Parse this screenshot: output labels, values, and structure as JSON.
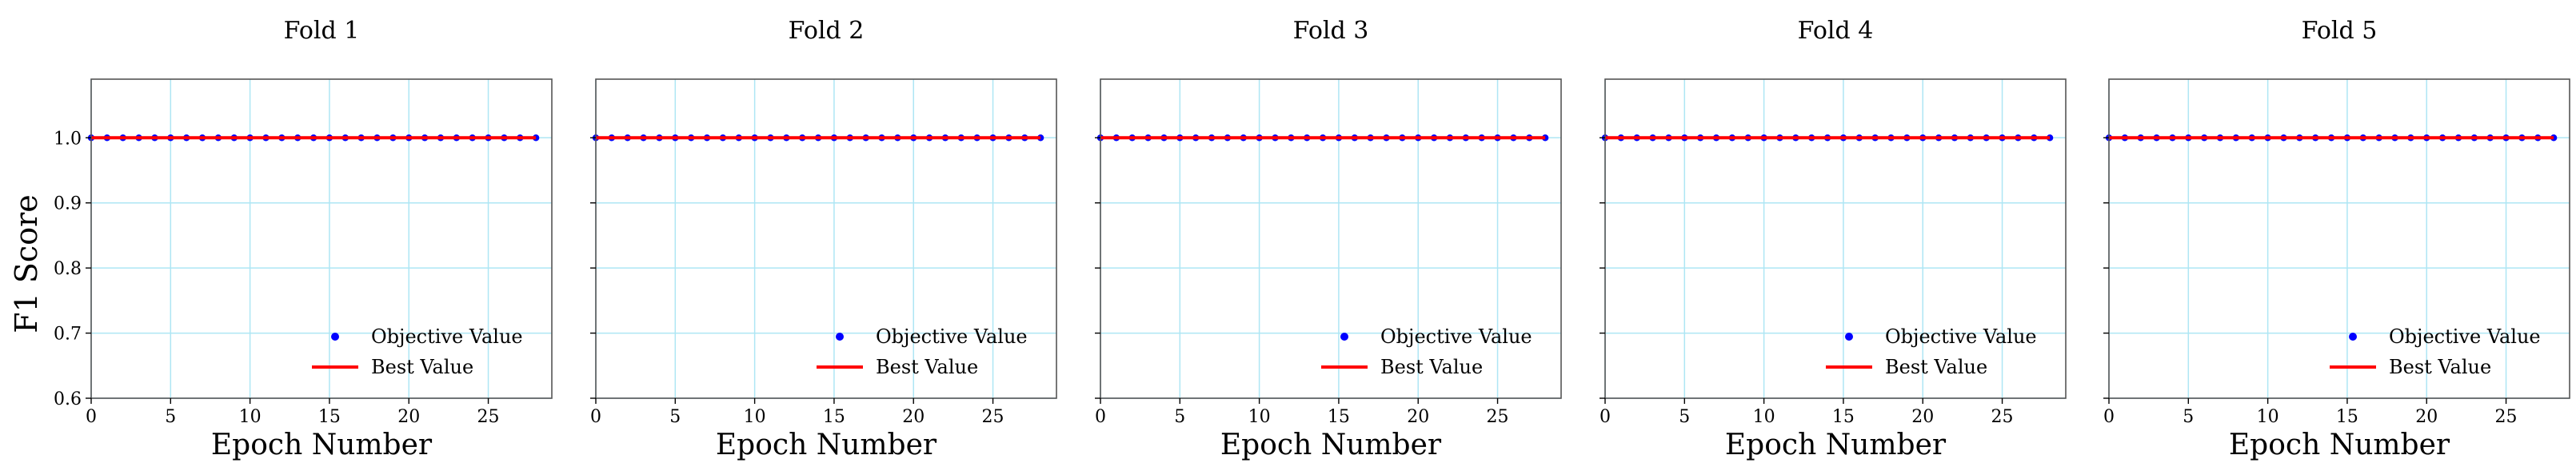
{
  "figure": {
    "ylabel": "F1 Score"
  },
  "chart_data": [
    {
      "type": "scatter",
      "title": "Fold 1",
      "xlabel": "Epoch Number",
      "ylabel": "F1 Score",
      "xlim": [
        0,
        29
      ],
      "ylim": [
        0.6,
        1.09
      ],
      "xticks": [
        0,
        5,
        10,
        15,
        20,
        25
      ],
      "yticks": [
        0.6,
        0.7,
        0.8,
        0.9,
        1.0
      ],
      "ytick_labels": [
        "0.6",
        "0.7",
        "0.8",
        "0.9",
        "1.0"
      ],
      "grid": true,
      "legend_position": "lower right",
      "series": [
        {
          "name": "Objective Value",
          "kind": "points",
          "color": "#0000ff",
          "x": [
            0,
            1,
            2,
            3,
            4,
            5,
            6,
            7,
            8,
            9,
            10,
            11,
            12,
            13,
            14,
            15,
            16,
            17,
            18,
            19,
            20,
            21,
            22,
            23,
            24,
            25,
            26,
            27,
            28
          ],
          "y": [
            1.0,
            1.0,
            1.0,
            1.0,
            1.0,
            1.0,
            1.0,
            1.0,
            1.0,
            1.0,
            1.0,
            1.0,
            1.0,
            1.0,
            1.0,
            1.0,
            1.0,
            1.0,
            1.0,
            1.0,
            1.0,
            1.0,
            1.0,
            1.0,
            1.0,
            1.0,
            1.0,
            1.0,
            1.0
          ]
        },
        {
          "name": "Best Value",
          "kind": "line",
          "color": "#ff0000",
          "x": [
            0,
            28
          ],
          "y": [
            1.0,
            1.0
          ]
        }
      ]
    },
    {
      "type": "scatter",
      "title": "Fold 2",
      "xlabel": "Epoch Number",
      "xlim": [
        0,
        29
      ],
      "ylim": [
        0.6,
        1.09
      ],
      "xticks": [
        0,
        5,
        10,
        15,
        20,
        25
      ],
      "yticks": [
        0.6,
        0.7,
        0.8,
        0.9,
        1.0
      ],
      "grid": true,
      "legend_position": "lower right",
      "series": [
        {
          "name": "Objective Value",
          "kind": "points",
          "color": "#0000ff",
          "x": [
            0,
            1,
            2,
            3,
            4,
            5,
            6,
            7,
            8,
            9,
            10,
            11,
            12,
            13,
            14,
            15,
            16,
            17,
            18,
            19,
            20,
            21,
            22,
            23,
            24,
            25,
            26,
            27,
            28
          ],
          "y": [
            1.0,
            1.0,
            1.0,
            1.0,
            1.0,
            1.0,
            1.0,
            1.0,
            1.0,
            1.0,
            1.0,
            1.0,
            1.0,
            1.0,
            1.0,
            1.0,
            1.0,
            1.0,
            1.0,
            1.0,
            1.0,
            1.0,
            1.0,
            1.0,
            1.0,
            1.0,
            1.0,
            1.0,
            1.0
          ]
        },
        {
          "name": "Best Value",
          "kind": "line",
          "color": "#ff0000",
          "x": [
            0,
            28
          ],
          "y": [
            1.0,
            1.0
          ]
        }
      ]
    },
    {
      "type": "scatter",
      "title": "Fold 3",
      "xlabel": "Epoch Number",
      "xlim": [
        0,
        29
      ],
      "ylim": [
        0.6,
        1.09
      ],
      "xticks": [
        0,
        5,
        10,
        15,
        20,
        25
      ],
      "yticks": [
        0.6,
        0.7,
        0.8,
        0.9,
        1.0
      ],
      "grid": true,
      "legend_position": "lower right",
      "series": [
        {
          "name": "Objective Value",
          "kind": "points",
          "color": "#0000ff",
          "x": [
            0,
            1,
            2,
            3,
            4,
            5,
            6,
            7,
            8,
            9,
            10,
            11,
            12,
            13,
            14,
            15,
            16,
            17,
            18,
            19,
            20,
            21,
            22,
            23,
            24,
            25,
            26,
            27,
            28
          ],
          "y": [
            1.0,
            1.0,
            1.0,
            1.0,
            1.0,
            1.0,
            1.0,
            1.0,
            1.0,
            1.0,
            1.0,
            1.0,
            1.0,
            1.0,
            1.0,
            1.0,
            1.0,
            1.0,
            1.0,
            1.0,
            1.0,
            1.0,
            1.0,
            1.0,
            1.0,
            1.0,
            1.0,
            1.0,
            1.0
          ]
        },
        {
          "name": "Best Value",
          "kind": "line",
          "color": "#ff0000",
          "x": [
            0,
            28
          ],
          "y": [
            1.0,
            1.0
          ]
        }
      ]
    },
    {
      "type": "scatter",
      "title": "Fold 4",
      "xlabel": "Epoch Number",
      "xlim": [
        0,
        29
      ],
      "ylim": [
        0.6,
        1.09
      ],
      "xticks": [
        0,
        5,
        10,
        15,
        20,
        25
      ],
      "yticks": [
        0.6,
        0.7,
        0.8,
        0.9,
        1.0
      ],
      "grid": true,
      "legend_position": "lower right",
      "series": [
        {
          "name": "Objective Value",
          "kind": "points",
          "color": "#0000ff",
          "x": [
            0,
            1,
            2,
            3,
            4,
            5,
            6,
            7,
            8,
            9,
            10,
            11,
            12,
            13,
            14,
            15,
            16,
            17,
            18,
            19,
            20,
            21,
            22,
            23,
            24,
            25,
            26,
            27,
            28
          ],
          "y": [
            1.0,
            1.0,
            1.0,
            1.0,
            1.0,
            1.0,
            1.0,
            1.0,
            1.0,
            1.0,
            1.0,
            1.0,
            1.0,
            1.0,
            1.0,
            1.0,
            1.0,
            1.0,
            1.0,
            1.0,
            1.0,
            1.0,
            1.0,
            1.0,
            1.0,
            1.0,
            1.0,
            1.0,
            1.0
          ]
        },
        {
          "name": "Best Value",
          "kind": "line",
          "color": "#ff0000",
          "x": [
            0,
            28
          ],
          "y": [
            1.0,
            1.0
          ]
        }
      ]
    },
    {
      "type": "scatter",
      "title": "Fold 5",
      "xlabel": "Epoch Number",
      "xlim": [
        0,
        29
      ],
      "ylim": [
        0.6,
        1.09
      ],
      "xticks": [
        0,
        5,
        10,
        15,
        20,
        25
      ],
      "yticks": [
        0.6,
        0.7,
        0.8,
        0.9,
        1.0
      ],
      "grid": true,
      "legend_position": "lower right",
      "series": [
        {
          "name": "Objective Value",
          "kind": "points",
          "color": "#0000ff",
          "x": [
            0,
            1,
            2,
            3,
            4,
            5,
            6,
            7,
            8,
            9,
            10,
            11,
            12,
            13,
            14,
            15,
            16,
            17,
            18,
            19,
            20,
            21,
            22,
            23,
            24,
            25,
            26,
            27,
            28
          ],
          "y": [
            1.0,
            1.0,
            1.0,
            1.0,
            1.0,
            1.0,
            1.0,
            1.0,
            1.0,
            1.0,
            1.0,
            1.0,
            1.0,
            1.0,
            1.0,
            1.0,
            1.0,
            1.0,
            1.0,
            1.0,
            1.0,
            1.0,
            1.0,
            1.0,
            1.0,
            1.0,
            1.0,
            1.0,
            1.0
          ]
        },
        {
          "name": "Best Value",
          "kind": "line",
          "color": "#ff0000",
          "x": [
            0,
            28
          ],
          "y": [
            1.0,
            1.0
          ]
        }
      ]
    }
  ],
  "style": {
    "grid_color": "#aee6f4",
    "axes_edge_color": "#555555"
  }
}
